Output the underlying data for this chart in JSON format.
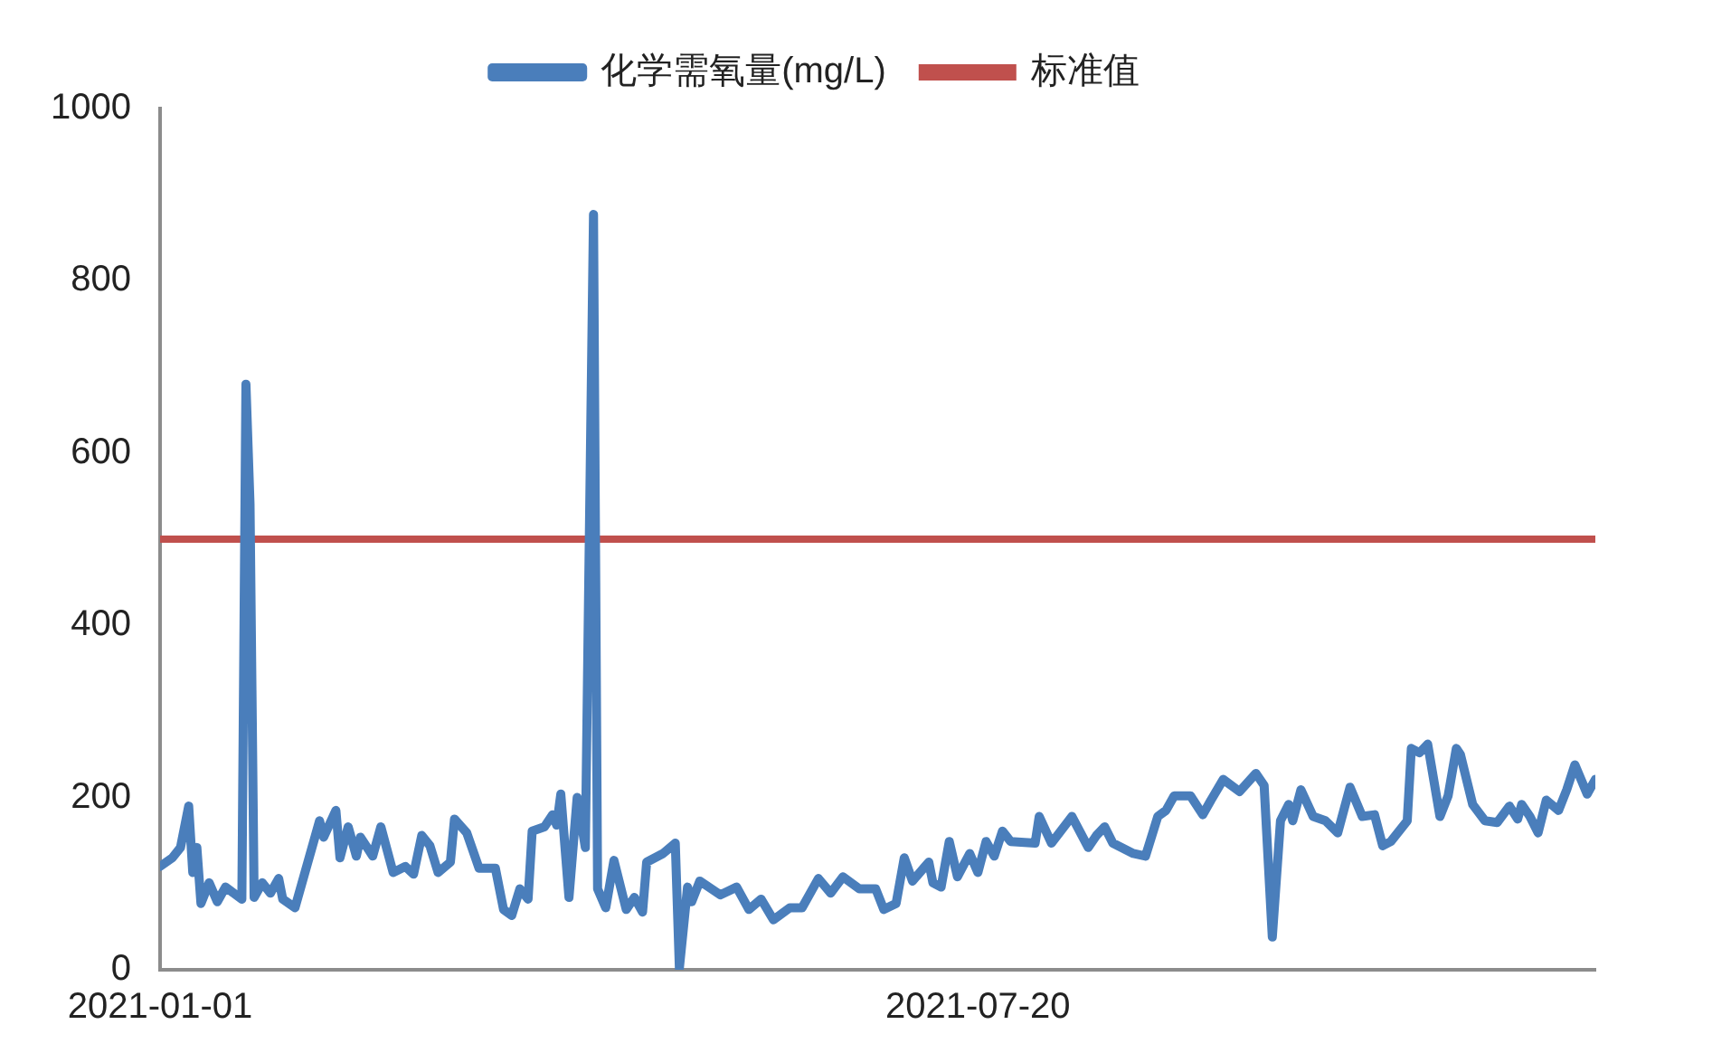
{
  "chart_data": {
    "type": "line",
    "legend": "top",
    "marker": "none",
    "line_style": "solid",
    "grid": false,
    "x": [
      "2021-01-01",
      "2021-01-04",
      "2021-01-06",
      "2021-01-08",
      "2021-01-09",
      "2021-01-10",
      "2021-01-11",
      "2021-01-13",
      "2021-01-15",
      "2021-01-17",
      "2021-01-21",
      "2021-01-22",
      "2021-01-23",
      "2021-01-24",
      "2021-01-26",
      "2021-01-28",
      "2021-01-30",
      "2021-01-31",
      "2021-02-03",
      "2021-02-09",
      "2021-02-10",
      "2021-02-13",
      "2021-02-14",
      "2021-02-16",
      "2021-02-18",
      "2021-02-19",
      "2021-02-22",
      "2021-02-24",
      "2021-02-27",
      "2021-03-02",
      "2021-03-04",
      "2021-03-06",
      "2021-03-08",
      "2021-03-10",
      "2021-03-13",
      "2021-03-14",
      "2021-03-17",
      "2021-03-20",
      "2021-03-24",
      "2021-03-26",
      "2021-03-28",
      "2021-03-30",
      "2021-04-01",
      "2021-04-02",
      "2021-04-05",
      "2021-04-07",
      "2021-04-08",
      "2021-04-09",
      "2021-04-11",
      "2021-04-13",
      "2021-04-15",
      "2021-04-17",
      "2021-04-18",
      "2021-04-20",
      "2021-04-22",
      "2021-04-25",
      "2021-04-27",
      "2021-04-29",
      "2021-04-30",
      "2021-05-04",
      "2021-05-07",
      "2021-05-08",
      "2021-05-10",
      "2021-05-11",
      "2021-05-13",
      "2021-05-18",
      "2021-05-22",
      "2021-05-25",
      "2021-05-28",
      "2021-05-31",
      "2021-06-04",
      "2021-06-07",
      "2021-06-11",
      "2021-06-14",
      "2021-06-17",
      "2021-06-21",
      "2021-06-25",
      "2021-06-27",
      "2021-06-30",
      "2021-07-02",
      "2021-07-04",
      "2021-07-08",
      "2021-07-09",
      "2021-07-11",
      "2021-07-13",
      "2021-07-15",
      "2021-07-18",
      "2021-07-20",
      "2021-07-22",
      "2021-07-24",
      "2021-07-26",
      "2021-07-28",
      "2021-08-03",
      "2021-08-04",
      "2021-08-07",
      "2021-08-12",
      "2021-08-16",
      "2021-08-18",
      "2021-08-20",
      "2021-08-22",
      "2021-08-27",
      "2021-08-30",
      "2021-09-02",
      "2021-09-04",
      "2021-09-06",
      "2021-09-10",
      "2021-09-13",
      "2021-09-15",
      "2021-09-18",
      "2021-09-22",
      "2021-09-26",
      "2021-09-28",
      "2021-09-30",
      "2021-10-02",
      "2021-10-04",
      "2021-10-05",
      "2021-10-07",
      "2021-10-10",
      "2021-10-13",
      "2021-10-16",
      "2021-10-19",
      "2021-10-22",
      "2021-10-25",
      "2021-10-27",
      "2021-10-29",
      "2021-11-02",
      "2021-11-03",
      "2021-11-05",
      "2021-11-07",
      "2021-11-10",
      "2021-11-12",
      "2021-11-14",
      "2021-11-15",
      "2021-11-18",
      "2021-11-21",
      "2021-11-24",
      "2021-11-27",
      "2021-11-29",
      "2021-11-30",
      "2021-12-02",
      "2021-12-04",
      "2021-12-06",
      "2021-12-09",
      "2021-12-11",
      "2021-12-13",
      "2021-12-16",
      "2021-12-18"
    ],
    "series": [
      {
        "name": "化学需氧量(mg/L)",
        "color": "#4a7ebb",
        "values": [
          120,
          130,
          142,
          190,
          113,
          142,
          77,
          101,
          79,
          96,
          82,
          680,
          541,
          84,
          101,
          89,
          106,
          82,
          72,
          173,
          154,
          185,
          130,
          166,
          132,
          154,
          132,
          166,
          113,
          120,
          111,
          156,
          144,
          113,
          125,
          175,
          159,
          118,
          118,
          70,
          63,
          94,
          82,
          161,
          166,
          180,
          168,
          204,
          84,
          200,
          142,
          877,
          94,
          72,
          127,
          70,
          84,
          67,
          125,
          135,
          147,
          2,
          96,
          79,
          103,
          87,
          96,
          70,
          82,
          58,
          72,
          72,
          106,
          89,
          108,
          94,
          94,
          70,
          77,
          130,
          103,
          125,
          101,
          96,
          149,
          108,
          135,
          113,
          149,
          132,
          161,
          149,
          147,
          178,
          147,
          178,
          142,
          156,
          166,
          147,
          135,
          132,
          178,
          185,
          202,
          202,
          180,
          197,
          221,
          207,
          228,
          214,
          38,
          173,
          192,
          173,
          209,
          178,
          173,
          159,
          212,
          178,
          180,
          144,
          149,
          173,
          257,
          252,
          262,
          178,
          202,
          257,
          250,
          192,
          173,
          171,
          190,
          175,
          192,
          178,
          159,
          197,
          185,
          209,
          238,
          204,
          221
        ]
      }
    ],
    "ref_lines": [
      {
        "axis": "y",
        "value": 500,
        "label": "标准值",
        "color": "#c0504d"
      }
    ],
    "xlim": [
      "2021-01-01",
      "2021-12-18"
    ],
    "xticks": [
      "2021-01-01",
      "2021-07-20"
    ],
    "ylim": [
      0,
      1000
    ],
    "yticks": [
      0,
      200,
      400,
      600,
      800,
      1000
    ]
  }
}
